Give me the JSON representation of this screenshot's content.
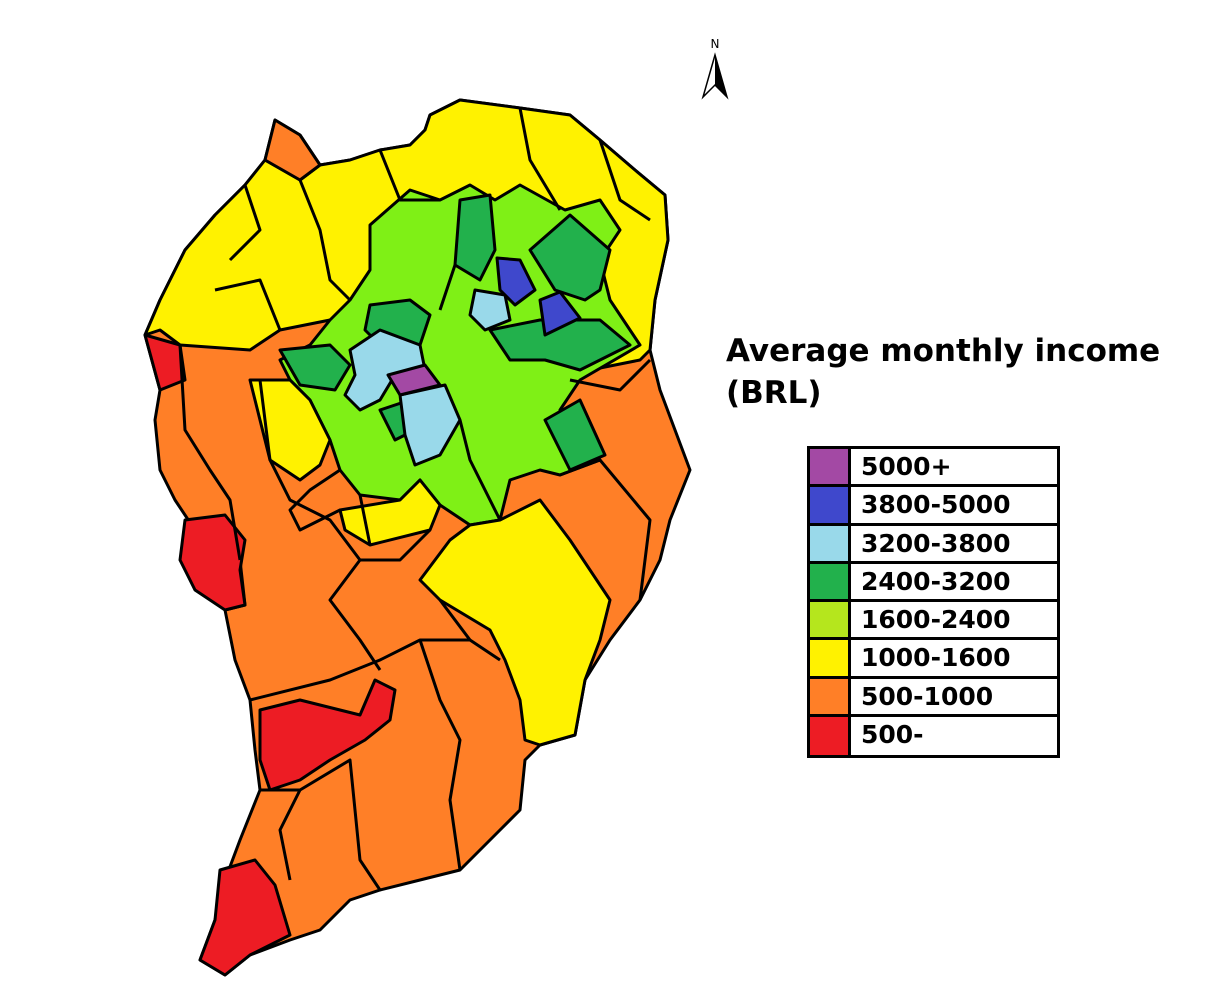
{
  "map": {
    "north_label": "N",
    "title": "Average monthly income (BRL)",
    "legend": [
      {
        "label": "5000+",
        "color": "#a349a4"
      },
      {
        "label": "3800-5000",
        "color": "#3f48cc"
      },
      {
        "label": "3200-3800",
        "color": "#99d9ea"
      },
      {
        "label": "2400-3200",
        "color": "#22b14c"
      },
      {
        "label": "1600-2400",
        "color": "#b5e61d"
      },
      {
        "label": "1000-1600",
        "color": "#fff200"
      },
      {
        "label": "500-1000",
        "color": "#ff7f27"
      },
      {
        "label": "500-",
        "color": "#ed1c24"
      }
    ],
    "region_colors": {
      "purple": "#a349a4",
      "blue": "#3f48cc",
      "light_blue": "#99d9ea",
      "dark_green": "#22b14c",
      "light_green": "#7ff016",
      "yellow": "#fff200",
      "orange": "#ff7f27",
      "red": "#ed1c24"
    }
  }
}
